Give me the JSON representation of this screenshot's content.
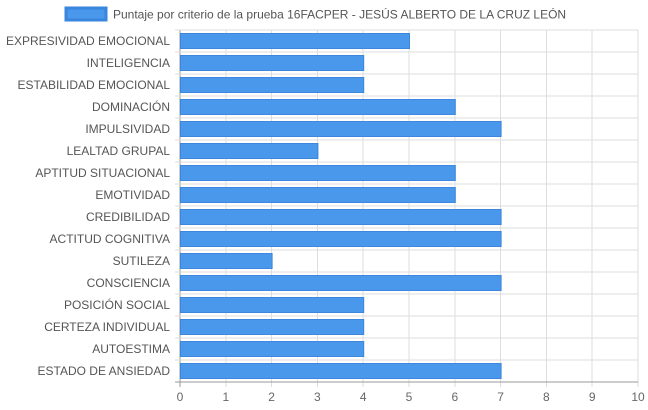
{
  "chart_data": {
    "type": "bar",
    "orientation": "horizontal",
    "legend_position": "top",
    "grid": true,
    "colors": {
      "bar_fill": "#4A98EB",
      "bar_stroke": "#3A85DD",
      "grid": "#dddddd",
      "axis": "#999999"
    },
    "series": [
      {
        "name": "Puntaje por criterio de la prueba 16FACPER - JESÚS ALBERTO DE LA CRUZ LEÓN",
        "values": [
          5,
          4,
          4,
          6,
          7,
          3,
          6,
          6,
          7,
          7,
          2,
          7,
          4,
          4,
          4,
          7
        ]
      }
    ],
    "categories": [
      "EXPRESIVIDAD EMOCIONAL",
      "INTELIGENCIA",
      "ESTABILIDAD EMOCIONAL",
      "DOMINACIÓN",
      "IMPULSIVIDAD",
      "LEALTAD GRUPAL",
      "APTITUD SITUACIONAL",
      "EMOTIVIDAD",
      "CREDIBILIDAD",
      "ACTITUD COGNITIVA",
      "SUTILEZA",
      "CONSCIENCIA",
      "POSICIÓN SOCIAL",
      "CERTEZA INDIVIDUAL",
      "AUTOESTIMA",
      "ESTADO DE ANSIEDAD"
    ],
    "xlim": [
      0,
      10
    ],
    "xticks": [
      "0",
      "1",
      "2",
      "3",
      "4",
      "5",
      "6",
      "7",
      "8",
      "9",
      "10"
    ]
  }
}
